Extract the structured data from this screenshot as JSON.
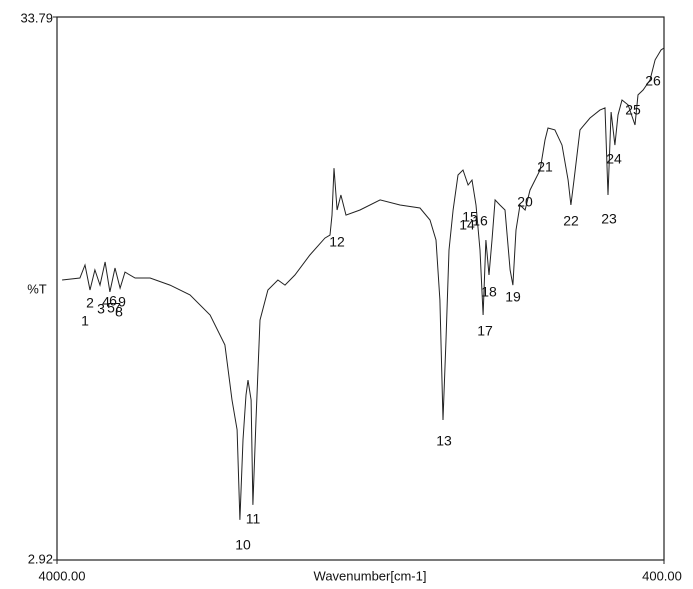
{
  "chart_data": {
    "type": "line",
    "x_label": "Wavenumber[cm-1]",
    "y_label": "%T",
    "xlim": [
      4000,
      400
    ],
    "ylim": [
      2.92,
      33.79
    ],
    "xticks": [
      {
        "value": 4000,
        "label": "4000.00"
      },
      {
        "value": 400,
        "label": "400.00"
      }
    ],
    "yticks": [
      2.92,
      33.79
    ],
    "annotations": [
      "1",
      "2",
      "3",
      "4",
      "5",
      "6",
      "7",
      "8",
      "9",
      "10",
      "11",
      "12",
      "13",
      "14",
      "15",
      "16",
      "17",
      "18",
      "19",
      "20",
      "21",
      "22",
      "23",
      "24",
      "25",
      "26"
    ],
    "series": [
      {
        "color": "#222222",
        "x": [
          3970,
          3864,
          3834,
          3804,
          3775,
          3745,
          3715,
          3686,
          3656,
          3626,
          3597,
          3537,
          3448,
          3330,
          3211,
          3092,
          3004,
          2962,
          2932,
          2915,
          2897,
          2879,
          2867,
          2849,
          2838,
          2820,
          2796,
          2749,
          2690,
          2648,
          2589,
          2500,
          2411,
          2381,
          2369,
          2357,
          2339,
          2316,
          2286,
          2203,
          2084,
          1966,
          1847,
          1788,
          1752,
          1729,
          1711,
          1693,
          1675,
          1651,
          1622,
          1592,
          1562,
          1539,
          1515,
          1491,
          1473,
          1456,
          1438,
          1420,
          1402,
          1373,
          1343,
          1313,
          1296,
          1278,
          1254,
          1224,
          1195,
          1165,
          1135,
          1106,
          1088,
          1047,
          1005,
          969,
          952,
          934,
          898,
          839,
          780,
          750,
          732,
          714,
          691,
          673,
          649,
          613,
          572,
          554,
          524,
          483,
          453,
          417,
          400
        ],
        "values": [
          18.84,
          18.95,
          19.69,
          18.27,
          19.41,
          18.55,
          19.86,
          18.16,
          19.52,
          18.38,
          19.29,
          18.95,
          18.95,
          18.55,
          17.99,
          16.85,
          15.15,
          12.02,
          10.32,
          5.2,
          9.75,
          12.3,
          13.15,
          12.02,
          6.05,
          10.88,
          16.56,
          18.27,
          18.84,
          18.55,
          19.12,
          20.26,
          21.22,
          21.39,
          22.53,
          25.2,
          22.82,
          23.67,
          22.53,
          22.82,
          23.39,
          23.1,
          22.93,
          22.25,
          21.11,
          17.7,
          10.88,
          15.43,
          20.54,
          22.82,
          24.81,
          25.09,
          24.24,
          24.52,
          23.1,
          20.54,
          16.85,
          21.11,
          19.12,
          21.11,
          23.39,
          23.1,
          22.82,
          19.41,
          18.55,
          21.68,
          23.1,
          22.82,
          23.95,
          24.52,
          25.09,
          26.8,
          27.48,
          27.37,
          26.51,
          24.52,
          23.1,
          24.52,
          27.37,
          28.05,
          28.5,
          28.62,
          23.67,
          28.39,
          26.51,
          28.22,
          29.07,
          28.79,
          27.65,
          29.36,
          29.64,
          30.21,
          31.35,
          31.92,
          32.03
        ]
      }
    ]
  }
}
